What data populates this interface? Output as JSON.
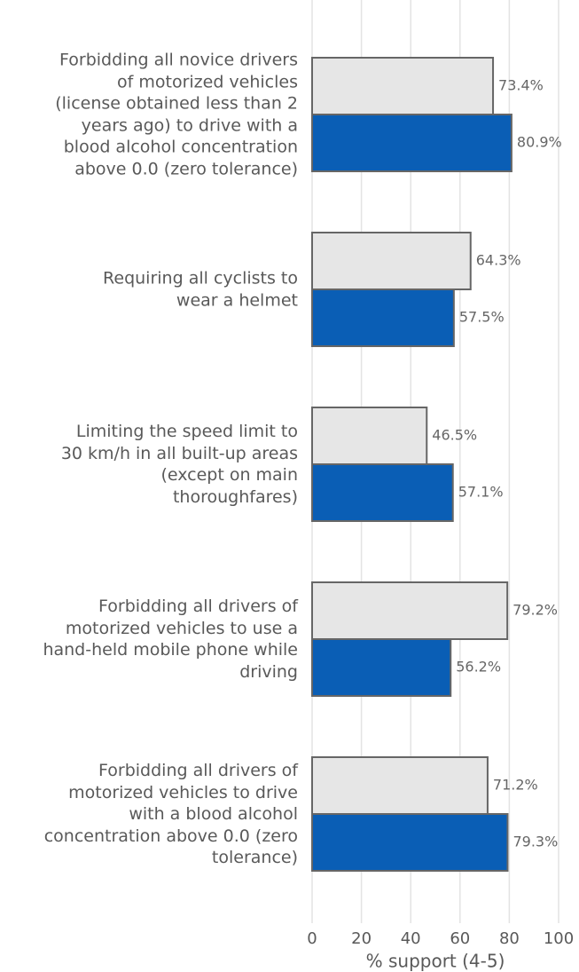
{
  "chart_data": {
    "type": "hbar",
    "categories": [
      "Forbidding all novice drivers\nof motorized vehicles\n(license obtained less than 2\nyears ago) to drive with a\nblood alcohol concentration\nabove 0.0 (zero tolerance)",
      "Requiring all cyclists to\nwear a helmet",
      "Limiting the speed limit to\n30 km/h in all built-up areas\n(except on main\nthoroughfares)",
      "Forbidding all drivers of\nmotorized vehicles to use a\nhand-held mobile phone while\ndriving",
      "Forbidding all drivers of\nmotorized vehicles to drive\nwith a blood alcohol\nconcentration above 0.0 (zero\ntolerance)"
    ],
    "series": [
      {
        "color": "#e6e6e6",
        "values": [
          73.4,
          64.3,
          46.5,
          79.2,
          71.2
        ],
        "value_labels": [
          "73.4%",
          "64.3%",
          "46.5%",
          "79.2%",
          "71.2%"
        ]
      },
      {
        "color": "#0a5eb5",
        "values": [
          80.9,
          57.5,
          57.1,
          56.2,
          79.3
        ],
        "value_labels": [
          "80.9%",
          "57.5%",
          "57.1%",
          "56.2%",
          "79.3%"
        ]
      }
    ],
    "xlim": [
      0,
      100
    ],
    "xticks": [
      0,
      20,
      40,
      60,
      80,
      100
    ],
    "xlabel": "% support (4-5)",
    "grid": true
  }
}
